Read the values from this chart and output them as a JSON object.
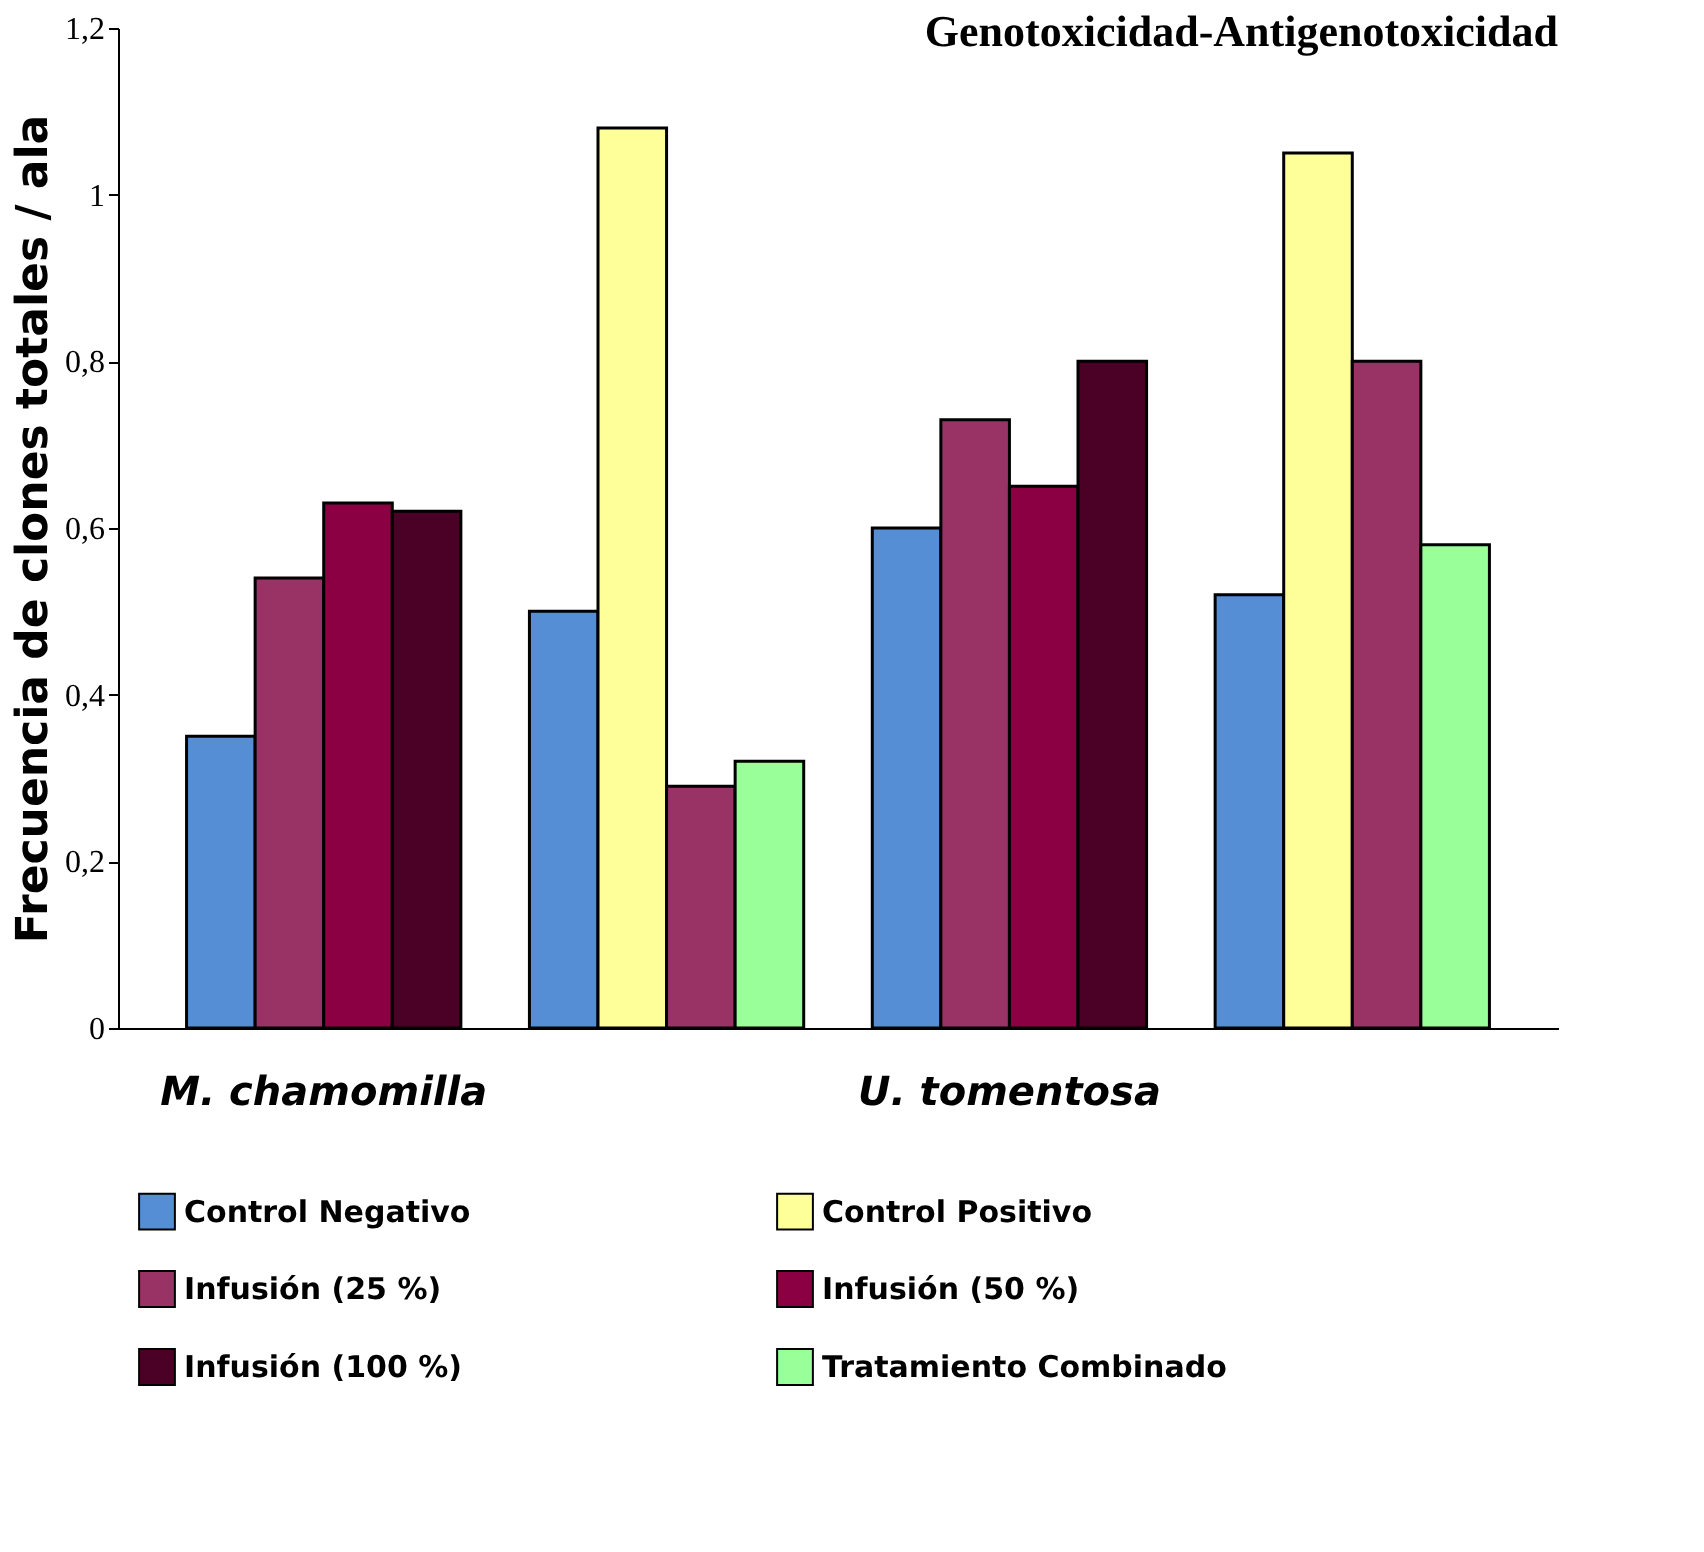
{
  "chart_data": {
    "type": "bar",
    "title": "Genotoxicidad-Antigenotoxicidad",
    "ylabel": "Frecuencia de clones totales / ala",
    "categories": [
      "M. chamomilla",
      null,
      "U. tomentosa",
      null
    ],
    "series": [
      {
        "name": "Control Negativo",
        "color": "#558ed5",
        "values": [
          0.35,
          0.5,
          0.6,
          0.52
        ]
      },
      {
        "name": "Control Positivo",
        "color": "#ffff99",
        "values": [
          null,
          1.08,
          null,
          1.05
        ]
      },
      {
        "name": "Infusión (25 %)",
        "color": "#993366",
        "values": [
          0.54,
          0.29,
          0.73,
          0.8
        ]
      },
      {
        "name": "Infusión (50  %)",
        "color": "#8b0043",
        "values": [
          0.63,
          null,
          0.65,
          null
        ]
      },
      {
        "name": "Infusión (100 %)",
        "color": "#4b0026",
        "values": [
          0.62,
          null,
          0.8,
          null
        ]
      },
      {
        "name": "Tratamiento Combinado",
        "color": "#99ff99",
        "values": [
          null,
          0.32,
          null,
          0.58
        ]
      }
    ],
    "ylim": [
      0,
      1.2
    ],
    "yticks": [
      0,
      {
        "value": 0.2,
        "label": "0,2"
      },
      {
        "value": 0.4,
        "label": "0,4"
      },
      {
        "value": 0.6,
        "label": "0,6"
      },
      {
        "value": 0.8,
        "label": "0,8"
      },
      1,
      {
        "value": 1.2,
        "label": "1,2"
      }
    ],
    "grid": false,
    "legend": "bottom"
  }
}
